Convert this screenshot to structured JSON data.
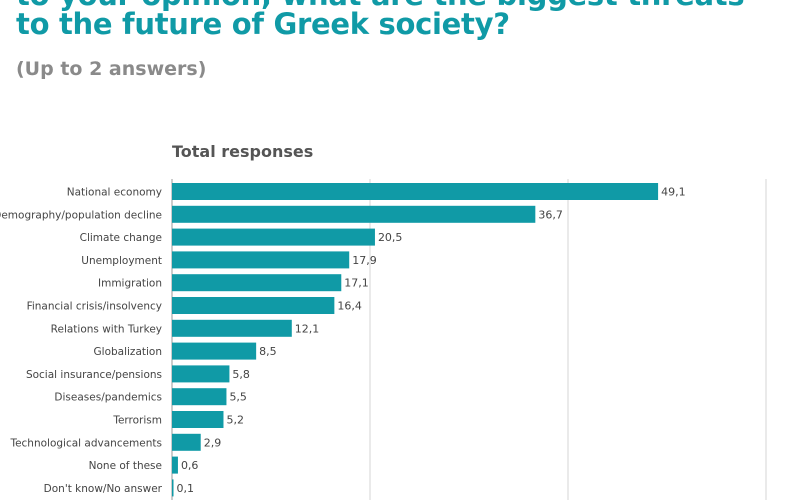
{
  "header": {
    "title_line1": "to your opinion, what are the biggest threats",
    "title_line2": "to the future of Greek society?",
    "subtitle": "(Up to 2 answers)"
  },
  "chart_data": {
    "type": "bar",
    "orientation": "horizontal",
    "title": "Total responses",
    "categories": [
      "National economy",
      "Demography/population decline",
      "Climate change",
      "Unemployment",
      "Immigration",
      "Financial crisis/insolvency",
      "Relations with Turkey",
      "Globalization",
      "Social insurance/pensions",
      "Diseases/pandemics",
      "Terrorism",
      "Technological advancements",
      "None of these",
      "Don't know/No answer"
    ],
    "values": [
      49.1,
      36.7,
      20.5,
      17.9,
      17.1,
      16.4,
      12.1,
      8.5,
      5.8,
      5.5,
      5.2,
      2.9,
      0.6,
      0.1
    ],
    "value_labels": [
      "49,1",
      "36,7",
      "20,5",
      "17,9",
      "17,1",
      "16,4",
      "12,1",
      "8,5",
      "5,8",
      "5,5",
      "5,2",
      "2,9",
      "0,6",
      "0,1"
    ],
    "xlim": [
      0,
      60
    ],
    "grid": true,
    "bar_color": "#109aa6"
  }
}
